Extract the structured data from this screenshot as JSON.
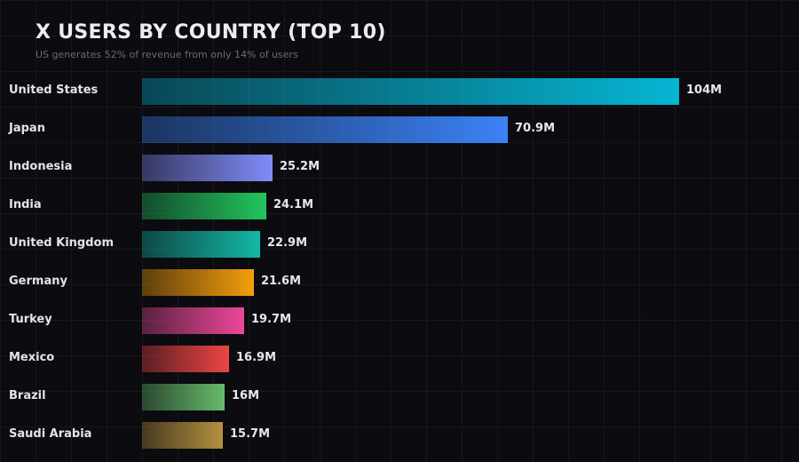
{
  "header": {
    "title": "X USERS BY COUNTRY (TOP 10)",
    "subtitle": "US generates 52% of revenue from only 14% of users"
  },
  "chart_data": {
    "type": "bar",
    "orientation": "horizontal",
    "title": "X USERS BY COUNTRY (TOP 10)",
    "subtitle": "US generates 52% of revenue from only 14% of users",
    "xlabel": "",
    "ylabel": "",
    "unit": "M",
    "grid": true,
    "legend": "none",
    "categories": [
      "United States",
      "Japan",
      "Indonesia",
      "India",
      "United Kingdom",
      "Germany",
      "Turkey",
      "Mexico",
      "Brazil",
      "Saudi Arabia"
    ],
    "values": [
      104,
      70.9,
      25.2,
      24.1,
      22.9,
      21.6,
      19.7,
      16.9,
      16,
      15.7
    ],
    "value_labels": [
      "104M",
      "70.9M",
      "25.2M",
      "24.1M",
      "22.9M",
      "21.6M",
      "19.7M",
      "16.9M",
      "16M",
      "15.7M"
    ],
    "colors": [
      "#06b6d4",
      "#3b82f6",
      "#818cf8",
      "#22c55e",
      "#14b8a6",
      "#f59e0b",
      "#ec4899",
      "#ef4444",
      "#66bb6a",
      "#b5913f"
    ],
    "xlim": [
      0,
      104
    ]
  }
}
